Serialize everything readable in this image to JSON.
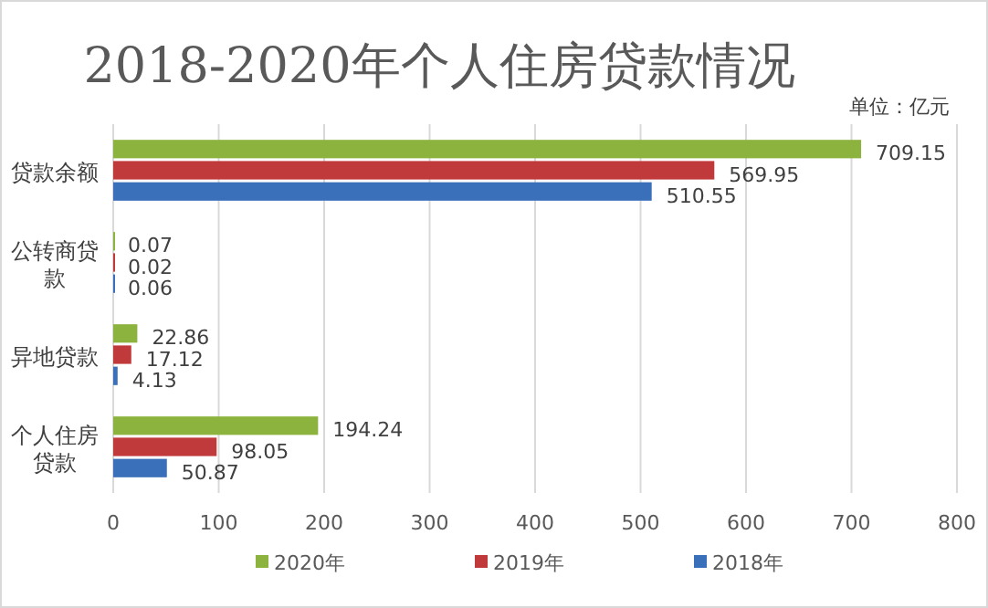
{
  "chart_data": {
    "type": "bar",
    "orientation": "horizontal",
    "title": "2018-2020年个人住房贷款情况",
    "annotations": [
      "单位：亿元"
    ],
    "categories": [
      "贷款余额",
      "公转商贷款",
      "异地贷款",
      "个人住房贷款"
    ],
    "series": [
      {
        "name": "2020年",
        "color": "#8db33f",
        "values": [
          709.15,
          0.07,
          22.86,
          194.24
        ]
      },
      {
        "name": "2019年",
        "color": "#c0393b",
        "values": [
          569.95,
          0.02,
          17.12,
          98.05
        ]
      },
      {
        "name": "2018年",
        "color": "#3a6fba",
        "values": [
          510.55,
          0.06,
          4.13,
          50.87
        ]
      }
    ],
    "xlim": [
      0,
      800
    ],
    "xticks": [
      0,
      100,
      200,
      300,
      400,
      500,
      600,
      700,
      800
    ],
    "grid": "x",
    "legend": "bottom",
    "data_labels": true
  }
}
